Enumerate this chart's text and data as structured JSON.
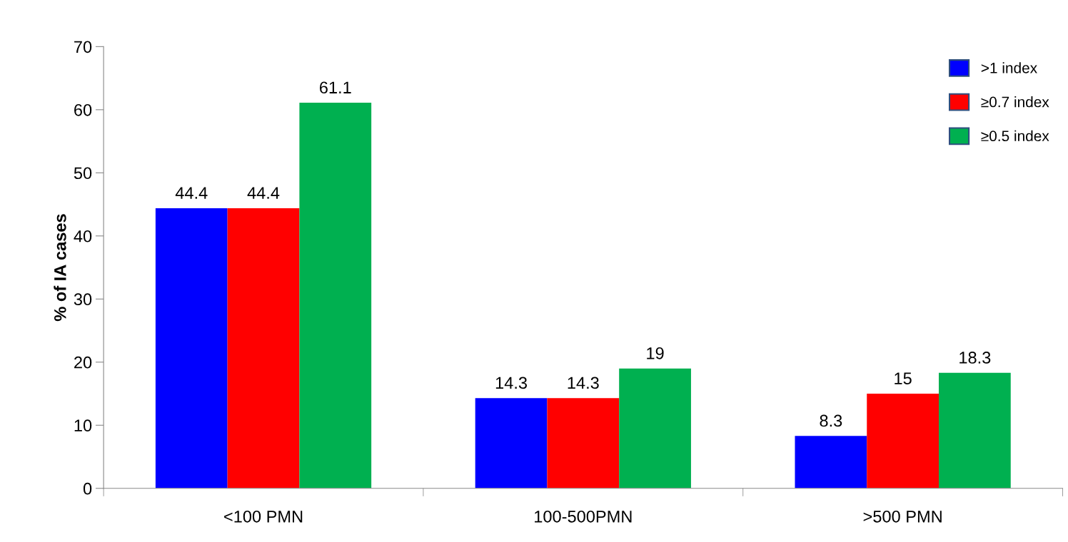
{
  "chart_data": {
    "type": "bar",
    "ylabel": "% of IA cases",
    "categories": [
      "<100 PMN",
      "100-500PMN",
      ">500 PMN"
    ],
    "series": [
      {
        "name": ">1 index",
        "color": "#0000ff",
        "values": [
          44.4,
          14.3,
          8.3
        ]
      },
      {
        "name": "≥0.7 index",
        "color": "#ff0000",
        "values": [
          44.4,
          14.3,
          15
        ]
      },
      {
        "name": "≥0.5 index",
        "color": "#00b050",
        "values": [
          61.1,
          19,
          18.3
        ]
      }
    ],
    "ylim": [
      0,
      70
    ],
    "yticks": [
      0,
      10,
      20,
      30,
      40,
      50,
      60,
      70
    ],
    "data_labels": true,
    "legend": "top right",
    "grid": false
  }
}
